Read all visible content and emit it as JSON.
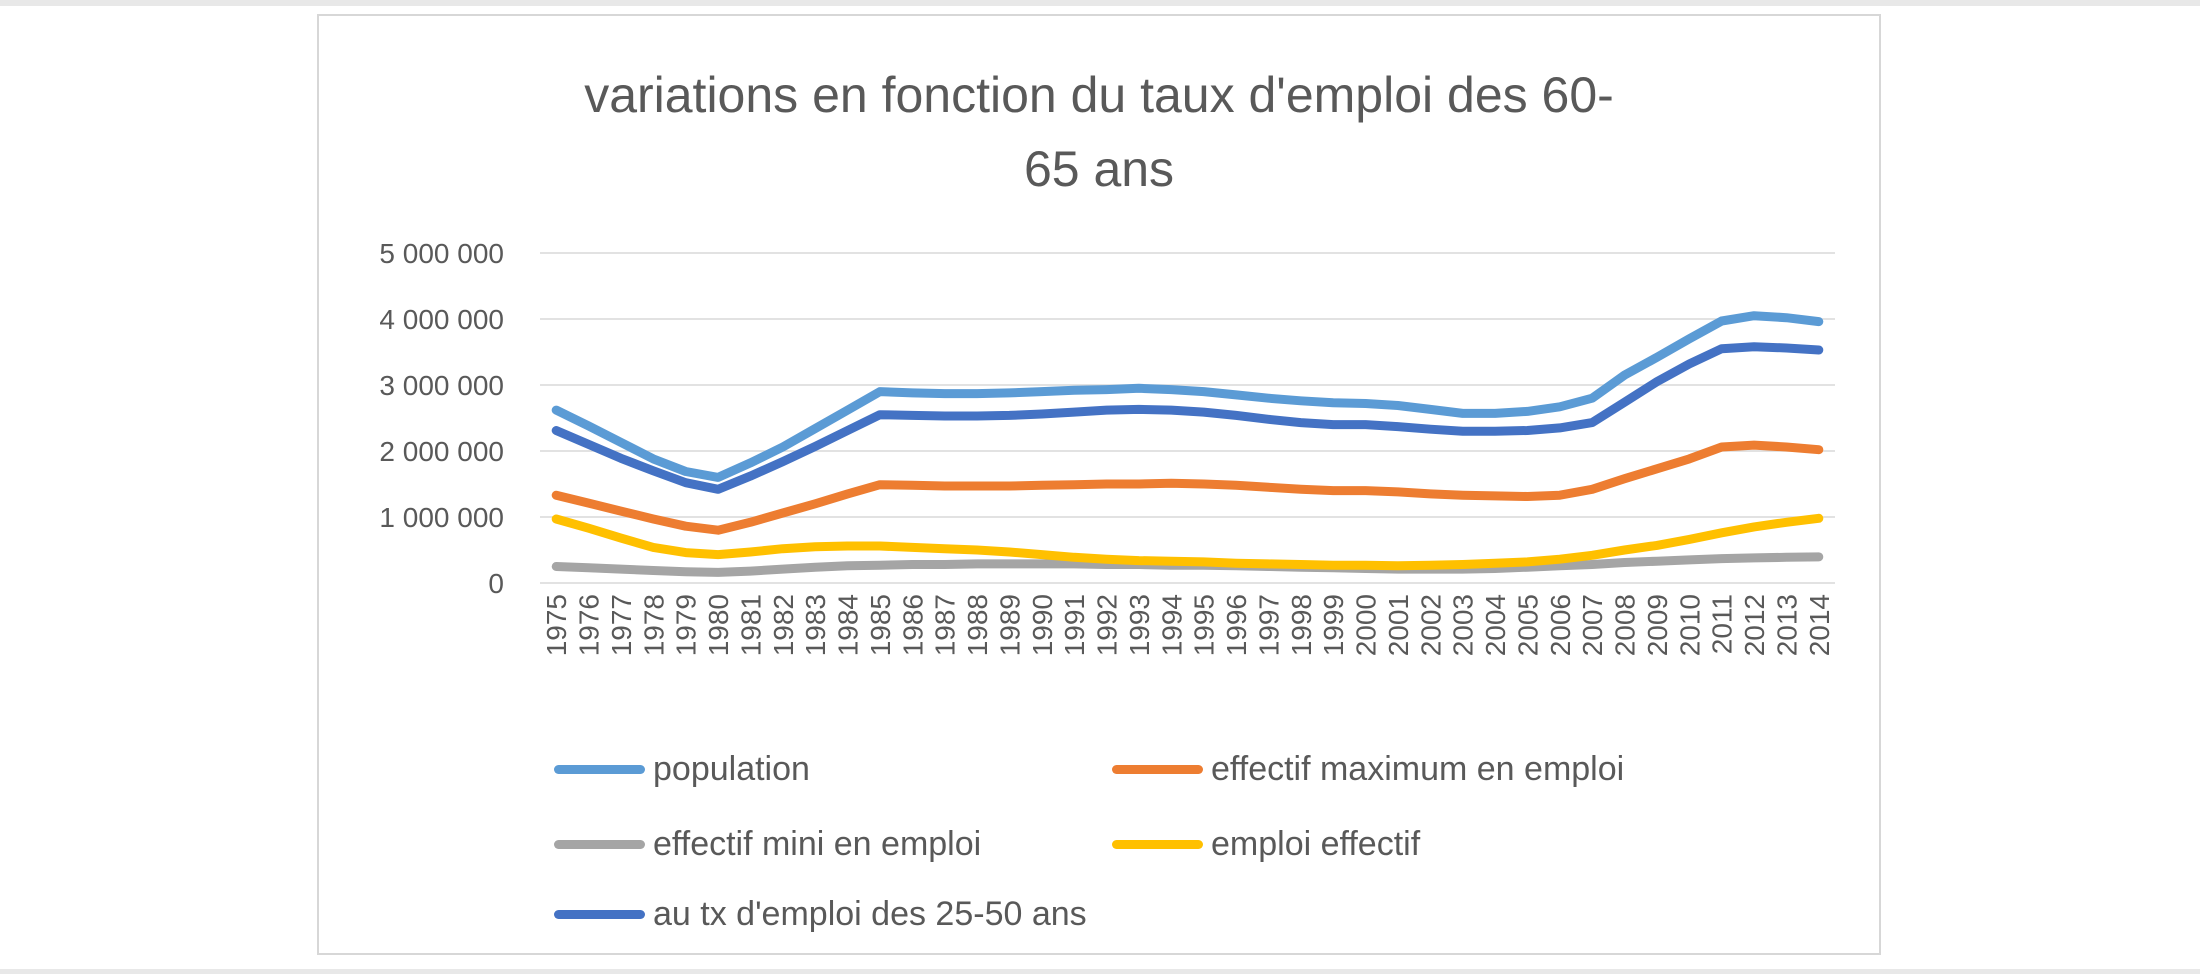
{
  "window": {
    "background": "#ffffff",
    "edge_color": "#e8e8e8",
    "frame_border_color": "#d7d7d7"
  },
  "title": {
    "line1": "variations en fonction du taux d'emploi des  60-",
    "line2": "65 ans",
    "full": "variations en fonction du taux d'emploi des 60-65 ans",
    "color": "#595959"
  },
  "chart_data": {
    "type": "line",
    "title": "variations en fonction du taux d'emploi des 60-65 ans",
    "xlabel": "",
    "ylabel": "",
    "ylim": [
      0,
      5000000
    ],
    "grid": true,
    "gridline_color": "#d9d9d9",
    "axis_text_color": "#595959",
    "legend_position": "bottom",
    "y_ticks": [
      {
        "value": 5000000,
        "label": "5 000 000"
      },
      {
        "value": 4000000,
        "label": "4 000 000"
      },
      {
        "value": 3000000,
        "label": "3 000 000"
      },
      {
        "value": 2000000,
        "label": "2 000 000"
      },
      {
        "value": 1000000,
        "label": "1 000 000"
      },
      {
        "value": 0,
        "label": "0"
      }
    ],
    "categories": [
      "1975",
      "1976",
      "1977",
      "1978",
      "1979",
      "1980",
      "1981",
      "1982",
      "1983",
      "1984",
      "1985",
      "1986",
      "1987",
      "1988",
      "1989",
      "1990",
      "1991",
      "1992",
      "1993",
      "1994",
      "1995",
      "1996",
      "1997",
      "1998",
      "1999",
      "2000",
      "2001",
      "2002",
      "2003",
      "2004",
      "2005",
      "2006",
      "2007",
      "2008",
      "2009",
      "2010",
      "2011",
      "2012",
      "2013",
      "2014"
    ],
    "series": [
      {
        "name": "population",
        "color": "#5B9BD5",
        "values": [
          2620000,
          2380000,
          2130000,
          1880000,
          1690000,
          1600000,
          1820000,
          2060000,
          2340000,
          2620000,
          2900000,
          2880000,
          2870000,
          2870000,
          2880000,
          2900000,
          2920000,
          2930000,
          2950000,
          2930000,
          2900000,
          2850000,
          2800000,
          2760000,
          2730000,
          2720000,
          2690000,
          2630000,
          2570000,
          2570000,
          2600000,
          2670000,
          2800000,
          3150000,
          3420000,
          3700000,
          3970000,
          4050000,
          4020000,
          3960000
        ]
      },
      {
        "name": "effectif maximum en emploi",
        "color": "#ED7D31",
        "values": [
          1330000,
          1210000,
          1090000,
          970000,
          860000,
          800000,
          920000,
          1060000,
          1200000,
          1350000,
          1490000,
          1480000,
          1470000,
          1470000,
          1470000,
          1480000,
          1490000,
          1500000,
          1500000,
          1510000,
          1500000,
          1480000,
          1450000,
          1420000,
          1400000,
          1400000,
          1380000,
          1350000,
          1330000,
          1320000,
          1310000,
          1330000,
          1420000,
          1580000,
          1730000,
          1880000,
          2060000,
          2090000,
          2060000,
          2020000
        ]
      },
      {
        "name": "effectif mini en emploi",
        "color": "#A5A5A5",
        "values": [
          250000,
          230000,
          210000,
          190000,
          170000,
          160000,
          180000,
          210000,
          240000,
          260000,
          270000,
          280000,
          280000,
          290000,
          290000,
          290000,
          290000,
          280000,
          280000,
          270000,
          270000,
          260000,
          250000,
          240000,
          230000,
          220000,
          210000,
          210000,
          210000,
          220000,
          240000,
          260000,
          280000,
          310000,
          330000,
          350000,
          370000,
          380000,
          390000,
          395000
        ]
      },
      {
        "name": "emploi effectif",
        "color": "#FFC000",
        "values": [
          970000,
          830000,
          680000,
          540000,
          460000,
          430000,
          470000,
          520000,
          550000,
          560000,
          560000,
          540000,
          520000,
          500000,
          470000,
          430000,
          390000,
          360000,
          340000,
          330000,
          320000,
          300000,
          290000,
          280000,
          270000,
          270000,
          260000,
          270000,
          280000,
          300000,
          320000,
          360000,
          420000,
          500000,
          570000,
          660000,
          760000,
          850000,
          920000,
          980000
        ]
      },
      {
        "name": "au tx d'emploi des 25-50 ans",
        "color": "#4472C4",
        "values": [
          2310000,
          2100000,
          1890000,
          1700000,
          1520000,
          1420000,
          1620000,
          1840000,
          2070000,
          2310000,
          2550000,
          2540000,
          2530000,
          2530000,
          2540000,
          2560000,
          2590000,
          2620000,
          2630000,
          2620000,
          2590000,
          2540000,
          2480000,
          2430000,
          2400000,
          2400000,
          2370000,
          2330000,
          2300000,
          2300000,
          2310000,
          2350000,
          2430000,
          2740000,
          3050000,
          3320000,
          3550000,
          3580000,
          3560000,
          3530000
        ]
      }
    ]
  }
}
